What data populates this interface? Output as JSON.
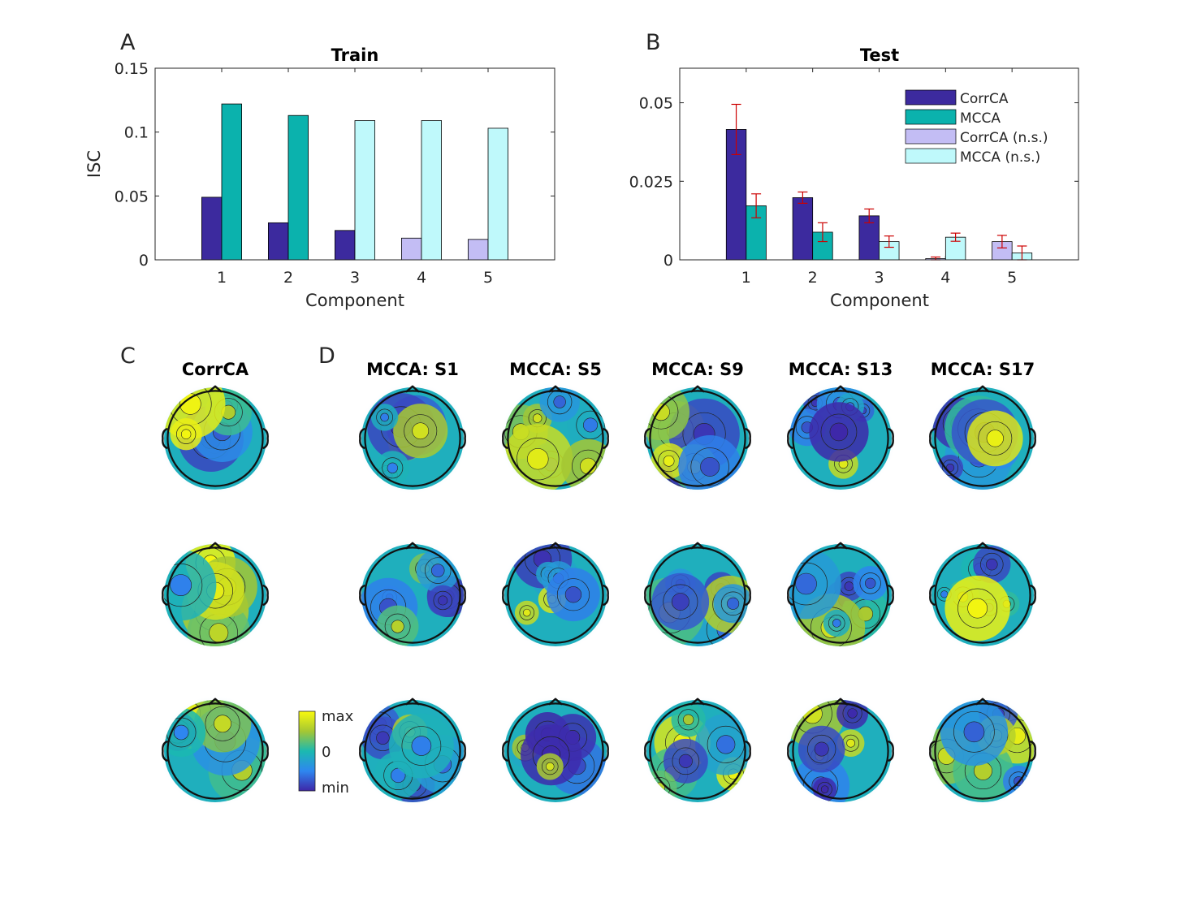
{
  "colors": {
    "corrca": "#3c2a9e",
    "mcca": "#0bb2ad",
    "corrca_ns": "#c3bdf4",
    "mcca_ns": "#bff9fb",
    "errorbar": "#cc0000",
    "axis": "#262626"
  },
  "chart_data": [
    {
      "panel": "A",
      "type": "bar",
      "title": "Train",
      "xlabel": "Component",
      "ylabel": "ISC",
      "categories": [
        "1",
        "2",
        "3",
        "4",
        "5"
      ],
      "ylim": [
        0,
        0.15
      ],
      "yticks": [
        0,
        0.05,
        0.1,
        0.15
      ],
      "ytick_labels": [
        "0",
        "0.05",
        "0.1",
        "0.15"
      ],
      "series": [
        {
          "name": "CorrCA",
          "values": [
            0.049,
            0.029,
            0.023,
            0.017,
            0.016
          ],
          "significant": [
            true,
            true,
            true,
            false,
            false
          ]
        },
        {
          "name": "MCCA",
          "values": [
            0.122,
            0.113,
            0.109,
            0.109,
            0.103
          ],
          "significant": [
            true,
            true,
            false,
            false,
            false
          ]
        }
      ]
    },
    {
      "panel": "B",
      "type": "bar",
      "title": "Test",
      "xlabel": "Component",
      "ylabel": "",
      "categories": [
        "1",
        "2",
        "3",
        "4",
        "5"
      ],
      "ylim": [
        0,
        0.061
      ],
      "yticks": [
        0,
        0.025,
        0.05
      ],
      "ytick_labels": [
        "0",
        "0.025",
        "0.05"
      ],
      "legend_position": "top-right",
      "legend": [
        "CorrCA",
        "MCCA",
        "CorrCA (n.s.)",
        "MCCA (n.s.)"
      ],
      "series": [
        {
          "name": "CorrCA",
          "values": [
            0.0415,
            0.0198,
            0.014,
            0.0004,
            0.0058
          ],
          "errors": [
            0.008,
            0.0018,
            0.0022,
            0.0005,
            0.002
          ],
          "significant": [
            true,
            true,
            true,
            false,
            false
          ]
        },
        {
          "name": "MCCA",
          "values": [
            0.0172,
            0.0088,
            0.0058,
            0.0072,
            0.0022
          ],
          "errors": [
            0.0038,
            0.003,
            0.0018,
            0.0013,
            0.0022
          ],
          "significant": [
            true,
            true,
            false,
            false,
            false
          ]
        }
      ]
    }
  ],
  "panel_labels": {
    "a": "A",
    "b": "B",
    "c": "C",
    "d": "D"
  },
  "topomaps": {
    "corrca_title": "CorrCA",
    "mcca_titles": [
      "MCCA: S1",
      "MCCA: S5",
      "MCCA: S9",
      "MCCA: S13",
      "MCCA: S17"
    ],
    "rows": 3
  },
  "colorbar": {
    "max_label": "max",
    "zero_label": "0",
    "min_label": "min"
  }
}
